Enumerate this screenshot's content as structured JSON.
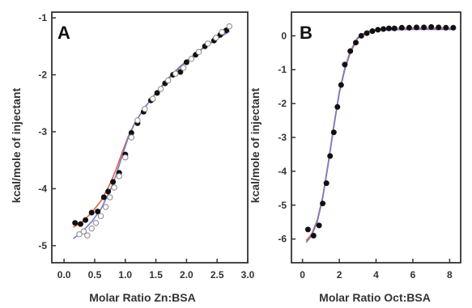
{
  "chart_data": [
    {
      "type": "scatter",
      "panel_label": "A",
      "xlabel": "Molar Ratio Zn:BSA",
      "ylabel": "kcal/mole of injectant",
      "xlim": [
        -0.2,
        3.0
      ],
      "ylim": [
        -5.3,
        -0.9
      ],
      "xticks": [
        0.0,
        0.5,
        1.0,
        1.5,
        2.0,
        2.5,
        3.0
      ],
      "xtick_labels": [
        "0.0",
        "0.5",
        "1.0",
        "1.5",
        "2.0",
        "2.5",
        "3.0"
      ],
      "yticks": [
        -1,
        -2,
        -3,
        -4,
        -5
      ],
      "ytick_labels": [
        "-1",
        "-2",
        "-3",
        "-4",
        "-5"
      ],
      "grid": false,
      "series": [
        {
          "marker": "filled-circle",
          "color": "#111111",
          "x": [
            0.18,
            0.27,
            0.35,
            0.45,
            0.55,
            0.65,
            0.72,
            0.8,
            0.9,
            1.0,
            1.1,
            1.2,
            1.3,
            1.42,
            1.52,
            1.65,
            1.78,
            1.9,
            2.0,
            2.15,
            2.3,
            2.45,
            2.55,
            2.65
          ],
          "y": [
            -4.6,
            -4.62,
            -4.55,
            -4.42,
            -4.4,
            -4.15,
            -4.05,
            -3.88,
            -3.72,
            -3.4,
            -3.02,
            -2.85,
            -2.65,
            -2.45,
            -2.32,
            -2.15,
            -2.0,
            -1.95,
            -1.78,
            -1.65,
            -1.5,
            -1.4,
            -1.3,
            -1.22
          ]
        },
        {
          "marker": "open-circle",
          "color": "#888888",
          "x": [
            0.25,
            0.32,
            0.38,
            0.45,
            0.52,
            0.6,
            0.68,
            0.75,
            0.82,
            0.9,
            1.0,
            1.1,
            1.2,
            1.32,
            1.45,
            1.58,
            1.7,
            1.82,
            1.95,
            2.08,
            2.2,
            2.35,
            2.48,
            2.58,
            2.7
          ],
          "y": [
            -4.8,
            -4.75,
            -4.82,
            -4.7,
            -4.6,
            -4.48,
            -4.32,
            -4.15,
            -3.98,
            -3.78,
            -3.45,
            -3.1,
            -2.8,
            -2.6,
            -2.42,
            -2.25,
            -2.1,
            -1.98,
            -1.88,
            -1.72,
            -1.6,
            -1.45,
            -1.35,
            -1.25,
            -1.15
          ]
        },
        {
          "style": "line",
          "color": "#e8603c",
          "x": [
            0.15,
            0.3,
            0.45,
            0.6,
            0.75,
            0.85,
            0.95,
            1.05,
            1.15,
            1.3,
            1.5,
            1.7,
            1.9,
            2.1,
            2.3,
            2.5,
            2.7
          ],
          "y": [
            -4.68,
            -4.58,
            -4.42,
            -4.22,
            -3.92,
            -3.66,
            -3.36,
            -3.08,
            -2.86,
            -2.6,
            -2.32,
            -2.08,
            -1.86,
            -1.68,
            -1.5,
            -1.36,
            -1.22
          ]
        },
        {
          "style": "line",
          "color": "#6f7fd6",
          "x": [
            0.15,
            0.3,
            0.45,
            0.6,
            0.75,
            0.85,
            0.95,
            1.05,
            1.15,
            1.3,
            1.5,
            1.7,
            1.9,
            2.1,
            2.3,
            2.5,
            2.7
          ],
          "y": [
            -4.88,
            -4.75,
            -4.58,
            -4.36,
            -4.04,
            -3.76,
            -3.42,
            -3.1,
            -2.86,
            -2.6,
            -2.32,
            -2.06,
            -1.85,
            -1.67,
            -1.51,
            -1.37,
            -1.24
          ]
        }
      ]
    },
    {
      "type": "scatter",
      "panel_label": "B",
      "xlabel": "Molar Ratio Oct:BSA",
      "ylabel": "kcal/mole of injectant",
      "xlim": [
        -0.6,
        8.6
      ],
      "ylim": [
        -6.7,
        0.7
      ],
      "xticks": [
        0,
        2,
        4,
        6,
        8
      ],
      "xtick_labels": [
        "0",
        "2",
        "4",
        "6",
        "8"
      ],
      "yticks": [
        0,
        -1,
        -2,
        -3,
        -4,
        -5,
        -6
      ],
      "ytick_labels": [
        "0",
        "-1",
        "-2",
        "-3",
        "-4",
        "-5",
        "-6"
      ],
      "grid": false,
      "series": [
        {
          "marker": "filled-circle",
          "color": "#111111",
          "x": [
            0.3,
            0.6,
            0.9,
            1.1,
            1.3,
            1.5,
            1.7,
            1.9,
            2.1,
            2.3,
            2.6,
            2.9,
            3.2,
            3.5,
            3.8,
            4.1,
            4.4,
            4.7,
            5.0,
            5.4,
            5.8,
            6.2,
            6.6,
            7.0,
            7.4,
            7.8,
            8.2
          ],
          "y": [
            -5.72,
            -5.9,
            -5.6,
            -4.95,
            -4.35,
            -3.55,
            -2.85,
            -2.1,
            -1.45,
            -0.85,
            -0.45,
            -0.2,
            0.0,
            0.08,
            0.14,
            0.18,
            0.2,
            0.22,
            0.22,
            0.24,
            0.24,
            0.25,
            0.25,
            0.26,
            0.25,
            0.24,
            0.24
          ]
        },
        {
          "style": "line",
          "color": "#e8603c",
          "x": [
            0.2,
            0.5,
            0.8,
            1.1,
            1.4,
            1.7,
            2.0,
            2.3,
            2.6,
            3.0,
            3.5,
            4.0,
            4.5,
            5.0,
            6.0,
            7.0,
            8.3
          ],
          "y": [
            -6.05,
            -5.85,
            -5.45,
            -4.75,
            -3.75,
            -2.65,
            -1.65,
            -0.95,
            -0.45,
            -0.05,
            0.12,
            0.18,
            0.21,
            0.22,
            0.23,
            0.23,
            0.23
          ]
        },
        {
          "style": "line",
          "color": "#6f7fd6",
          "x": [
            0.2,
            0.5,
            0.8,
            1.1,
            1.4,
            1.7,
            2.0,
            2.3,
            2.6,
            3.0,
            3.5,
            4.0,
            4.5,
            5.0,
            6.0,
            7.0,
            8.3
          ],
          "y": [
            -6.1,
            -5.9,
            -5.5,
            -4.8,
            -3.8,
            -2.7,
            -1.7,
            -1.0,
            -0.5,
            -0.08,
            0.1,
            0.15,
            0.17,
            0.18,
            0.19,
            0.19,
            0.19
          ]
        }
      ]
    }
  ]
}
